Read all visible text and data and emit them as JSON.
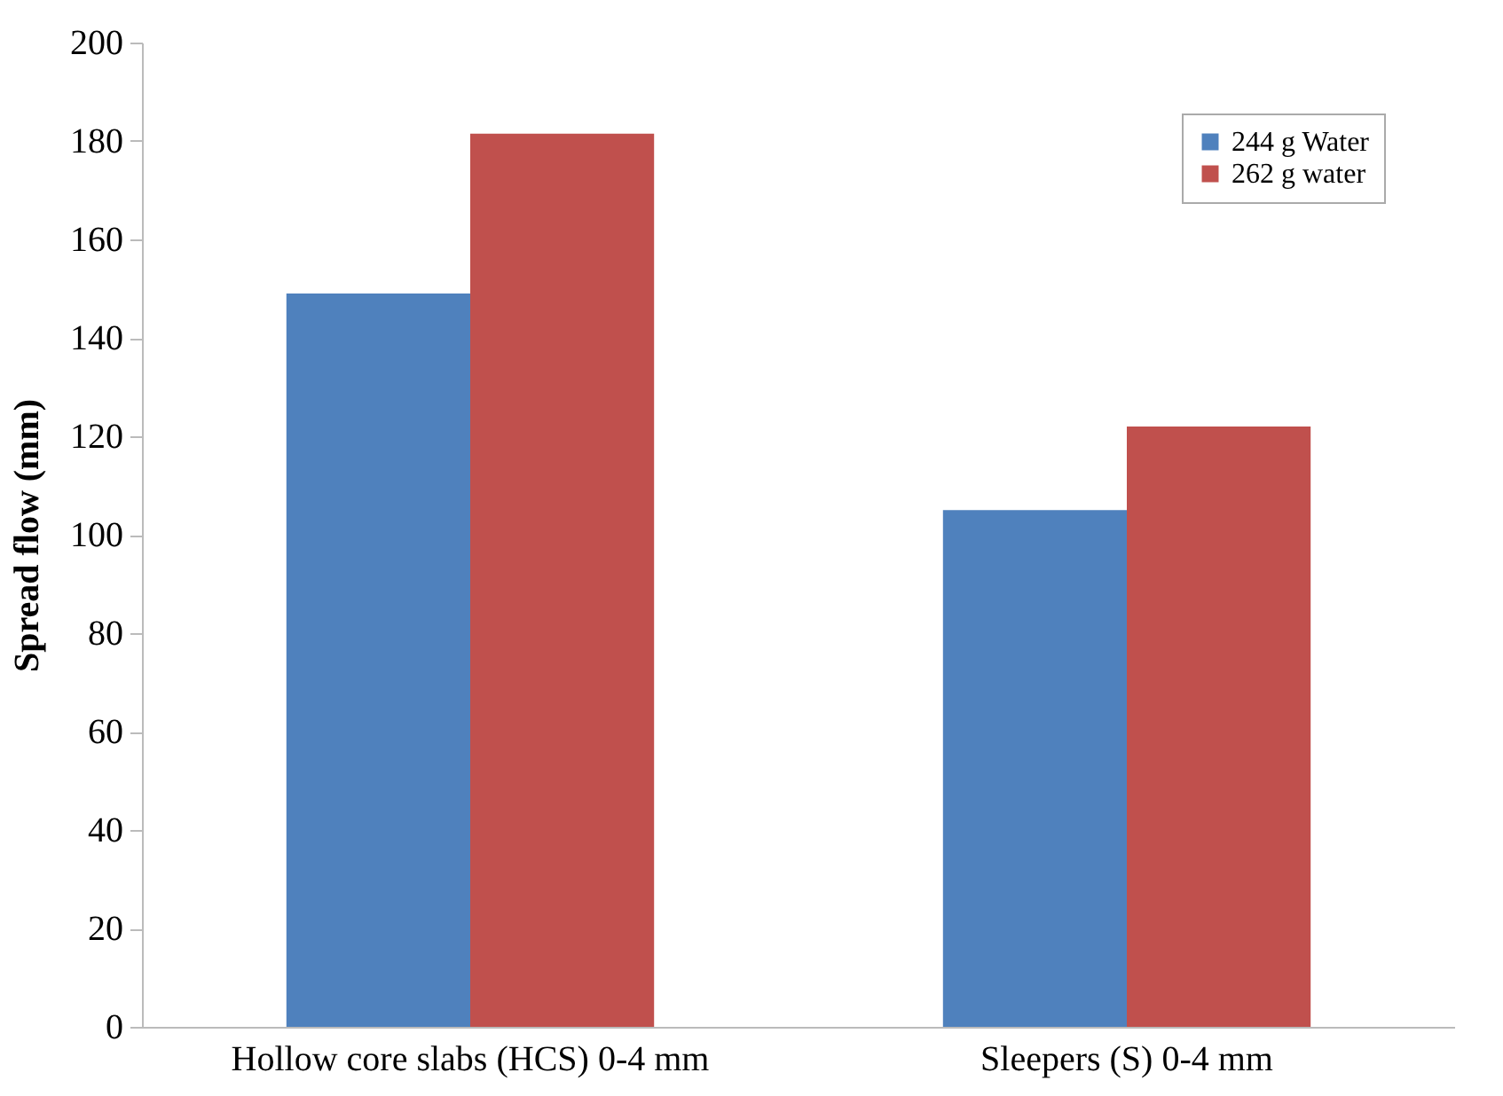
{
  "chart_data": {
    "type": "bar",
    "ylabel": "Spread flow (mm)",
    "categories": [
      "Hollow core slabs (HCS) 0-4 mm",
      "Sleepers (S) 0-4 mm"
    ],
    "series": [
      {
        "name": "244 g Water",
        "color": "#4f81bd",
        "values": [
          149,
          105
        ]
      },
      {
        "name": "262 g water",
        "color": "#c0504d",
        "values": [
          181.5,
          122
        ]
      }
    ],
    "ylim": [
      0,
      200
    ],
    "yticks": [
      0,
      20,
      40,
      60,
      80,
      100,
      120,
      140,
      160,
      180,
      200
    ],
    "grid": false,
    "legend": "top right"
  }
}
